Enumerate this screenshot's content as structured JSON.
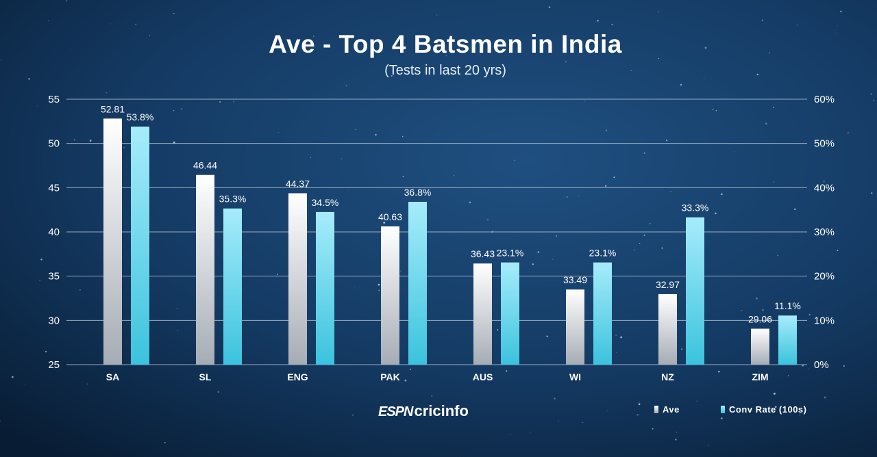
{
  "title": "Ave - Top 4 Batsmen in India",
  "subtitle": "(Tests in last 20 yrs)",
  "brand": {
    "espn": "ESPN",
    "cricinfo": "cricinfo"
  },
  "colors": {
    "background": "#0d2a4a",
    "ave_top": "#ffffff",
    "ave_bottom": "#a6acb5",
    "conv_top": "#a6ecfb",
    "conv_bottom": "#3bc3dd",
    "gridline": "#c8d2de"
  },
  "chart_data": {
    "type": "bar",
    "title": "Ave - Top 4 Batsmen in India",
    "subtitle": "(Tests in last 20 yrs)",
    "categories": [
      "SA",
      "SL",
      "ENG",
      "PAK",
      "AUS",
      "WI",
      "NZ",
      "ZIM"
    ],
    "series": [
      {
        "name": "Ave",
        "axis": "left",
        "values": [
          52.81,
          46.44,
          44.37,
          40.63,
          36.43,
          33.49,
          32.97,
          29.06
        ],
        "labels": [
          "52.81",
          "46.44",
          "44.37",
          "40.63",
          "36.43",
          "33.49",
          "32.97",
          "29.06"
        ]
      },
      {
        "name": "Conv Rate (100s)",
        "axis": "right",
        "values": [
          53.8,
          35.3,
          34.5,
          36.8,
          23.1,
          23.1,
          33.3,
          11.1
        ],
        "labels": [
          "53.8%",
          "35.3%",
          "34.5%",
          "36.8%",
          "23.1%",
          "23.1%",
          "33.3%",
          "11.1%"
        ]
      }
    ],
    "y_left": {
      "ylim": [
        25,
        55
      ],
      "ticks": [
        "25",
        "30",
        "35",
        "40",
        "45",
        "50",
        "55"
      ]
    },
    "y_right": {
      "ylim": [
        0,
        60
      ],
      "ticks": [
        "0%",
        "10%",
        "20%",
        "30%",
        "40%",
        "50%",
        "60%"
      ]
    },
    "grid": true,
    "legend": {
      "position": "bottom-right",
      "entries": [
        "Ave",
        "Conv Rate (100s)"
      ]
    }
  }
}
